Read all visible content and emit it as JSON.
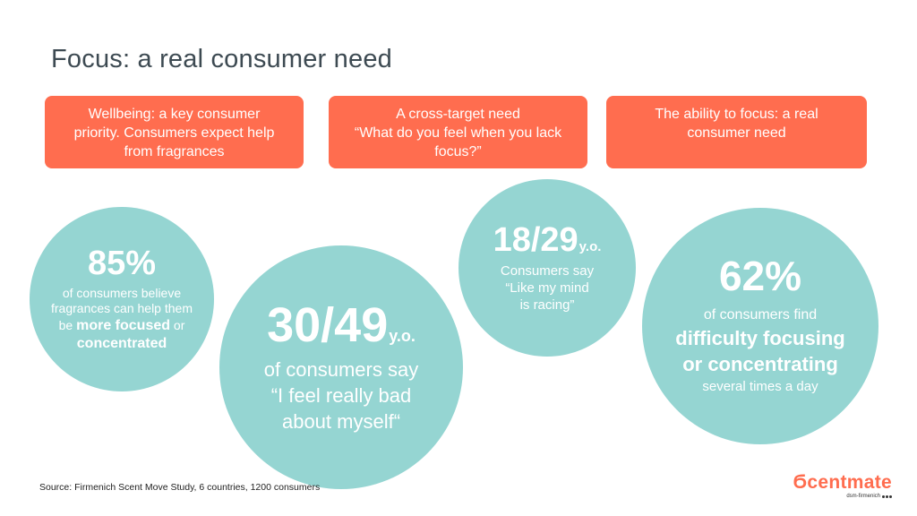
{
  "title": "Focus: a real consumer need",
  "boxes": [
    {
      "lines": [
        "Wellbeing: a key consumer",
        "priority. Consumers expect help",
        "from fragrances"
      ]
    },
    {
      "lines": [
        "A cross-target need",
        "“What do you feel when you lack",
        "focus?”"
      ]
    },
    {
      "lines": [
        "The ability to focus: a real",
        "consumer need"
      ]
    }
  ],
  "circles": {
    "c1": {
      "stat": "85%",
      "line1": "of consumers believe",
      "line2": "fragrances can help them",
      "line3_prefix": "be ",
      "line3_bold": "more focused",
      "line3_suffix": " or",
      "line4_bold": "concentrated"
    },
    "c2": {
      "stat": "30/49",
      "suffix": "y.o.",
      "line1": "of consumers say",
      "line2": "“I feel really bad",
      "line3": "about myself“"
    },
    "c3": {
      "stat": "18/29",
      "suffix": "y.o.",
      "line1": "Consumers say",
      "line2": "“Like my mind",
      "line3": "is racing”"
    },
    "c4": {
      "stat": "62%",
      "line1": "of consumers find",
      "line2_bold": "difficulty focusing",
      "line3_bold": "or concentrating",
      "line4": "several times a day"
    }
  },
  "source": "Source: Firmenich Scent Move Study, 6 countries, 1200 consumers",
  "logo": {
    "word": "Ϭcentmate",
    "sub": "dsm-firmenich",
    "color": "#ff6d4f"
  },
  "colors": {
    "accent": "#ff6d4f",
    "circle": "#95d5d2",
    "title": "#3d4a52"
  }
}
